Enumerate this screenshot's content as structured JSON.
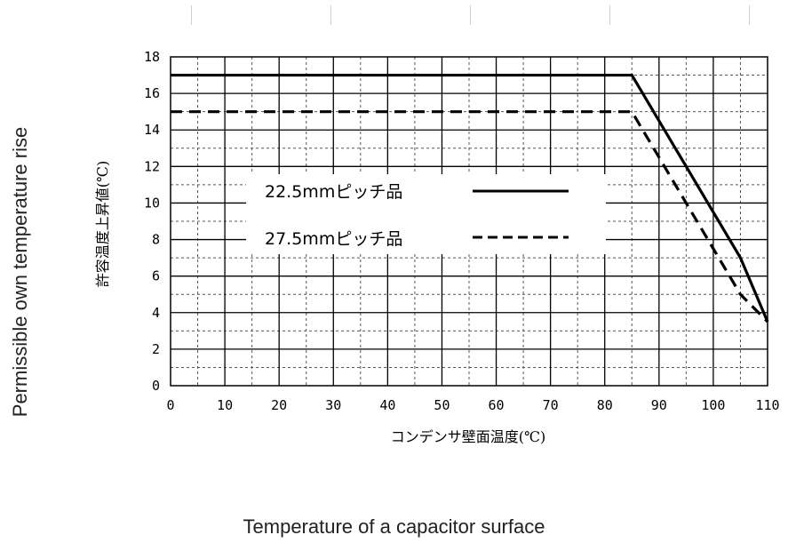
{
  "chart_data": {
    "type": "line",
    "xlabel": "コンデンサ壁面温度(℃)",
    "ylabel": "許容温度上昇値(℃)",
    "xlabel_en": "Temperature of a capacitor surface",
    "ylabel_en": "Permissible own temperature rise",
    "xlim": [
      0,
      110
    ],
    "ylim": [
      0,
      18
    ],
    "xticks": [
      0,
      10,
      20,
      30,
      40,
      50,
      60,
      70,
      80,
      90,
      100,
      110
    ],
    "yticks": [
      0,
      2,
      4,
      6,
      8,
      10,
      12,
      14,
      16,
      18
    ],
    "grid": true,
    "legend_position": "center",
    "series": [
      {
        "name": "22.5mmピッチ品",
        "style": "solid",
        "color": "#000000",
        "x": [
          0,
          85,
          105,
          110
        ],
        "y": [
          17,
          17,
          7,
          3.5
        ]
      },
      {
        "name": "27.5mmピッチ品",
        "style": "dashed",
        "color": "#000000",
        "x": [
          0,
          85,
          105,
          110
        ],
        "y": [
          15,
          15,
          5,
          3.5
        ]
      }
    ]
  }
}
